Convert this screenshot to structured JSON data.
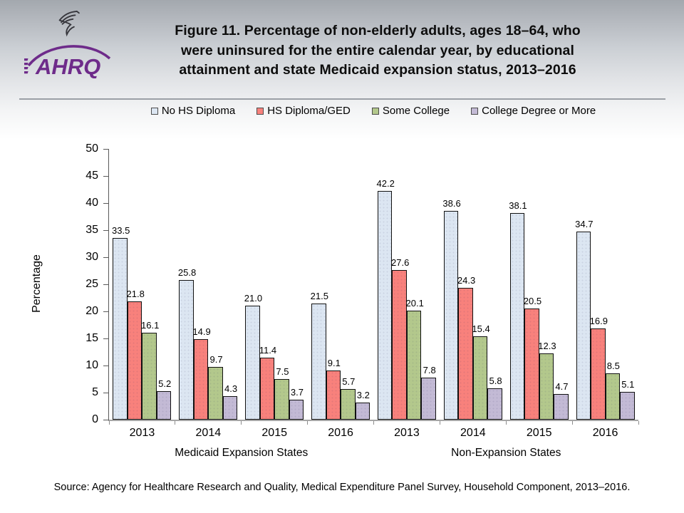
{
  "header": {
    "org_abbrev": "AHRQ",
    "title_lines": [
      "Figure 11. Percentage of non-elderly adults, ages 18–64, who",
      "were uninsured for the entire calendar year, by educational",
      "attainment and state Medicaid expansion status, 2013–2016"
    ]
  },
  "chart_data": {
    "type": "bar",
    "title": "Figure 11. Percentage of non-elderly adults, ages 18–64, who were uninsured for the entire calendar year, by educational attainment and state Medicaid expansion status, 2013–2016",
    "ylabel": "Percentage",
    "ylim": [
      0,
      50
    ],
    "yticks": [
      0,
      5,
      10,
      15,
      20,
      25,
      30,
      35,
      40,
      45,
      50
    ],
    "grid": false,
    "legend_position": "top",
    "value_labels": true,
    "categories": [
      "2013",
      "2014",
      "2015",
      "2016",
      "2013",
      "2014",
      "2015",
      "2016"
    ],
    "group_sections": [
      "Medicaid Expansion States",
      "Non-Expansion States"
    ],
    "series": [
      {
        "name": "No HS Diploma",
        "color": "#dce6f2",
        "values": [
          33.5,
          25.8,
          21.0,
          21.5,
          42.2,
          38.6,
          38.1,
          34.7
        ]
      },
      {
        "name": "HS Diploma/GED",
        "color": "#f8817c",
        "values": [
          21.8,
          14.9,
          11.4,
          9.1,
          27.6,
          24.3,
          20.5,
          16.9
        ]
      },
      {
        "name": "Some College",
        "color": "#b3c88c",
        "values": [
          16.1,
          9.7,
          7.5,
          5.7,
          20.1,
          15.4,
          12.3,
          8.5
        ]
      },
      {
        "name": "College Degree or More",
        "color": "#c3bad5",
        "values": [
          5.2,
          4.3,
          3.7,
          3.2,
          7.8,
          5.8,
          4.7,
          5.1
        ]
      }
    ]
  },
  "footer": {
    "source": "Source: Agency for Healthcare Research and Quality, Medical Expenditure Panel Survey, Household Component, 2013–2016."
  }
}
